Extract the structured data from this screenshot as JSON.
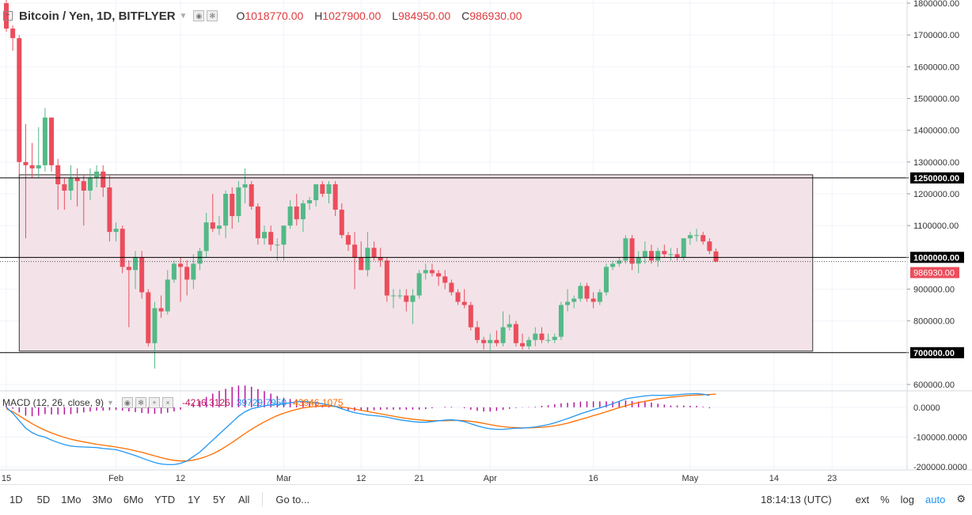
{
  "header": {
    "symbol_title": "Bitcoin / Yen, 1D, BITFLYER",
    "open_label": "O",
    "open_value": "1018770.00",
    "high_label": "H",
    "high_value": "1027900.00",
    "low_label": "L",
    "low_value": "984950.00",
    "close_label": "C",
    "close_value": "986930.00"
  },
  "macd_header": {
    "name": "MACD (12, 26, close, 9)",
    "hist_value": "-4216.3126",
    "macd_value": "39729.7950",
    "signal_value": "43946.1075"
  },
  "colors": {
    "up": "#53b987",
    "down": "#eb4d5c",
    "zone_fill": "#f3e3e8",
    "macd_line": "#2196f3",
    "signal_line": "#ff6d00",
    "hist": "#b5179e",
    "price_tag": "#eb4d5c"
  },
  "price_axis": {
    "ticks": [
      "1800000.00",
      "1700000.00",
      "1600000.00",
      "1500000.00",
      "1400000.00",
      "1300000.00",
      "1200000.00",
      "1100000.00",
      "900000.00",
      "800000.00",
      "600000.00"
    ],
    "tick_values": [
      1800000,
      1700000,
      1600000,
      1500000,
      1400000,
      1300000,
      1200000,
      1100000,
      900000,
      800000,
      600000
    ],
    "level_tags": [
      "1250000.00",
      "1000000.00",
      "700000.00"
    ],
    "level_values": [
      1250000,
      1000000,
      700000
    ],
    "last_price_tag": "986930.00",
    "last_price_value": 986930
  },
  "macd_axis": {
    "ticks": [
      "0.0000",
      "-100000.0000",
      "-200000.0000"
    ],
    "tick_values": [
      0,
      -100000,
      -200000
    ]
  },
  "time_axis": {
    "labels": [
      "15",
      "Feb",
      "12",
      "Mar",
      "12",
      "21",
      "Apr",
      "16",
      "May",
      "14",
      "23"
    ],
    "bar_index": [
      0,
      17,
      27,
      43,
      55,
      64,
      75,
      91,
      106,
      119,
      128
    ]
  },
  "chart_data": {
    "type": "candlestick",
    "title": "Bitcoin / Yen, 1D, BITFLYER",
    "ylim": [
      580000,
      1810000
    ],
    "support_resistance": [
      1250000,
      1000000,
      700000
    ],
    "zone": {
      "top": 1260000,
      "bottom": 705000,
      "start_bar": 2,
      "end_bar": 125
    },
    "ohlc": [
      [
        1800000,
        1820000,
        1710000,
        1720000
      ],
      [
        1720000,
        1730000,
        1650000,
        1690000
      ],
      [
        1690000,
        1700000,
        1260000,
        1300000
      ],
      [
        1300000,
        1420000,
        1060000,
        1290000
      ],
      [
        1290000,
        1360000,
        1250000,
        1280000
      ],
      [
        1280000,
        1410000,
        1250000,
        1290000
      ],
      [
        1290000,
        1470000,
        1270000,
        1440000
      ],
      [
        1440000,
        1440000,
        1270000,
        1290000
      ],
      [
        1290000,
        1310000,
        1150000,
        1230000
      ],
      [
        1230000,
        1250000,
        1150000,
        1210000
      ],
      [
        1210000,
        1290000,
        1180000,
        1250000
      ],
      [
        1250000,
        1280000,
        1160000,
        1240000
      ],
      [
        1240000,
        1260000,
        1100000,
        1210000
      ],
      [
        1210000,
        1280000,
        1180000,
        1250000
      ],
      [
        1250000,
        1290000,
        1220000,
        1270000
      ],
      [
        1270000,
        1290000,
        1190000,
        1220000
      ],
      [
        1220000,
        1260000,
        1050000,
        1080000
      ],
      [
        1080000,
        1110000,
        1050000,
        1090000
      ],
      [
        1090000,
        1100000,
        950000,
        970000
      ],
      [
        970000,
        990000,
        780000,
        960000
      ],
      [
        960000,
        1020000,
        900000,
        1000000
      ],
      [
        1000000,
        1020000,
        870000,
        890000
      ],
      [
        890000,
        900000,
        720000,
        730000
      ],
      [
        730000,
        860000,
        650000,
        840000
      ],
      [
        840000,
        880000,
        810000,
        830000
      ],
      [
        830000,
        960000,
        820000,
        930000
      ],
      [
        930000,
        990000,
        920000,
        980000
      ],
      [
        980000,
        1000000,
        860000,
        970000
      ],
      [
        970000,
        990000,
        880000,
        930000
      ],
      [
        930000,
        1010000,
        900000,
        980000
      ],
      [
        980000,
        1030000,
        960000,
        1020000
      ],
      [
        1020000,
        1140000,
        1000000,
        1110000
      ],
      [
        1110000,
        1200000,
        1080000,
        1090000
      ],
      [
        1090000,
        1130000,
        1070000,
        1100000
      ],
      [
        1100000,
        1210000,
        1060000,
        1200000
      ],
      [
        1200000,
        1220000,
        1090000,
        1130000
      ],
      [
        1130000,
        1240000,
        1110000,
        1220000
      ],
      [
        1220000,
        1280000,
        1170000,
        1230000
      ],
      [
        1230000,
        1240000,
        1150000,
        1160000
      ],
      [
        1160000,
        1170000,
        1040000,
        1060000
      ],
      [
        1060000,
        1100000,
        1040000,
        1080000
      ],
      [
        1080000,
        1100000,
        1020000,
        1040000
      ],
      [
        1040000,
        1060000,
        990000,
        1040000
      ],
      [
        1040000,
        1100000,
        990000,
        1100000
      ],
      [
        1100000,
        1180000,
        1090000,
        1160000
      ],
      [
        1160000,
        1200000,
        1100000,
        1120000
      ],
      [
        1120000,
        1180000,
        1080000,
        1170000
      ],
      [
        1170000,
        1190000,
        1150000,
        1180000
      ],
      [
        1180000,
        1230000,
        1160000,
        1230000
      ],
      [
        1230000,
        1240000,
        1190000,
        1200000
      ],
      [
        1200000,
        1240000,
        1170000,
        1230000
      ],
      [
        1230000,
        1240000,
        1130000,
        1150000
      ],
      [
        1150000,
        1170000,
        1060000,
        1070000
      ],
      [
        1070000,
        1080000,
        1020000,
        1040000
      ],
      [
        1040000,
        1080000,
        900000,
        1000000
      ],
      [
        1000000,
        1050000,
        960000,
        960000
      ],
      [
        960000,
        1080000,
        940000,
        1030000
      ],
      [
        1030000,
        1050000,
        990000,
        1000000
      ],
      [
        1000000,
        1030000,
        970000,
        990000
      ],
      [
        990000,
        1000000,
        860000,
        880000
      ],
      [
        880000,
        900000,
        840000,
        880000
      ],
      [
        880000,
        900000,
        870000,
        880000
      ],
      [
        880000,
        900000,
        830000,
        860000
      ],
      [
        860000,
        900000,
        790000,
        880000
      ],
      [
        880000,
        960000,
        870000,
        950000
      ],
      [
        950000,
        980000,
        930000,
        960000
      ],
      [
        960000,
        980000,
        940000,
        950000
      ],
      [
        950000,
        960000,
        910000,
        940000
      ],
      [
        940000,
        960000,
        900000,
        920000
      ],
      [
        920000,
        930000,
        880000,
        890000
      ],
      [
        890000,
        900000,
        850000,
        860000
      ],
      [
        860000,
        900000,
        840000,
        850000
      ],
      [
        850000,
        860000,
        770000,
        780000
      ],
      [
        780000,
        800000,
        730000,
        740000
      ],
      [
        740000,
        750000,
        710000,
        730000
      ],
      [
        730000,
        760000,
        700000,
        740000
      ],
      [
        740000,
        770000,
        720000,
        730000
      ],
      [
        730000,
        830000,
        720000,
        780000
      ],
      [
        780000,
        820000,
        770000,
        790000
      ],
      [
        790000,
        800000,
        720000,
        730000
      ],
      [
        730000,
        760000,
        710000,
        720000
      ],
      [
        720000,
        750000,
        710000,
        740000
      ],
      [
        740000,
        780000,
        720000,
        760000
      ],
      [
        760000,
        780000,
        730000,
        740000
      ],
      [
        740000,
        760000,
        730000,
        740000
      ],
      [
        740000,
        760000,
        730000,
        750000
      ],
      [
        750000,
        860000,
        740000,
        850000
      ],
      [
        850000,
        900000,
        830000,
        860000
      ],
      [
        860000,
        880000,
        840000,
        870000
      ],
      [
        870000,
        920000,
        860000,
        910000
      ],
      [
        910000,
        920000,
        860000,
        870000
      ],
      [
        870000,
        890000,
        840000,
        860000
      ],
      [
        860000,
        900000,
        850000,
        890000
      ],
      [
        890000,
        980000,
        880000,
        970000
      ],
      [
        970000,
        990000,
        960000,
        980000
      ],
      [
        980000,
        1000000,
        970000,
        990000
      ],
      [
        990000,
        1070000,
        980000,
        1060000
      ],
      [
        1060000,
        1070000,
        960000,
        980000
      ],
      [
        980000,
        1020000,
        950000,
        1000000
      ],
      [
        1000000,
        1050000,
        980000,
        1020000
      ],
      [
        1020000,
        1040000,
        980000,
        990000
      ],
      [
        990000,
        1030000,
        970000,
        1020000
      ],
      [
        1020000,
        1040000,
        1000000,
        1010000
      ],
      [
        1010000,
        1030000,
        990000,
        1010000
      ],
      [
        1010000,
        1030000,
        990000,
        1000000
      ],
      [
        1000000,
        1060000,
        990000,
        1060000
      ],
      [
        1060000,
        1080000,
        1040000,
        1070000
      ],
      [
        1070000,
        1090000,
        1050000,
        1070000
      ],
      [
        1070000,
        1080000,
        1040000,
        1050000
      ],
      [
        1050000,
        1060000,
        1010000,
        1020000
      ],
      [
        1018770,
        1027900,
        984950,
        986930
      ]
    ],
    "macd": {
      "ylim": [
        -210000,
        50000
      ],
      "macd_line": [
        0,
        -20000,
        -45000,
        -70000,
        -85000,
        -95000,
        -100000,
        -110000,
        -118000,
        -125000,
        -130000,
        -132000,
        -133000,
        -134000,
        -135000,
        -138000,
        -140000,
        -142000,
        -148000,
        -155000,
        -162000,
        -170000,
        -178000,
        -185000,
        -190000,
        -192000,
        -192000,
        -188000,
        -180000,
        -165000,
        -150000,
        -130000,
        -110000,
        -90000,
        -70000,
        -50000,
        -30000,
        -15000,
        -5000,
        0,
        5000,
        8000,
        10000,
        12000,
        15000,
        18000,
        20000,
        18000,
        15000,
        12000,
        8000,
        3000,
        -5000,
        -12000,
        -18000,
        -22000,
        -26000,
        -28000,
        -30000,
        -33000,
        -38000,
        -42000,
        -45000,
        -48000,
        -50000,
        -50000,
        -48000,
        -45000,
        -43000,
        -42000,
        -44000,
        -48000,
        -55000,
        -62000,
        -68000,
        -72000,
        -74000,
        -74000,
        -72000,
        -70000,
        -70000,
        -68000,
        -66000,
        -62000,
        -58000,
        -52000,
        -45000,
        -38000,
        -30000,
        -22000,
        -15000,
        -8000,
        -2000,
        5000,
        12000,
        20000,
        28000,
        32000,
        35000,
        38000,
        40000,
        40000,
        40000,
        40000,
        42000,
        44000,
        45000,
        46000,
        44000,
        40000
      ],
      "signal_line": [
        -5000,
        -15000,
        -28000,
        -42000,
        -55000,
        -67000,
        -77000,
        -86000,
        -94000,
        -101000,
        -107000,
        -112000,
        -116000,
        -120000,
        -124000,
        -127000,
        -130000,
        -133000,
        -137000,
        -141000,
        -146000,
        -151000,
        -157000,
        -163000,
        -169000,
        -174000,
        -178000,
        -180000,
        -180000,
        -177000,
        -172000,
        -165000,
        -156000,
        -145000,
        -132000,
        -118000,
        -103000,
        -88000,
        -74000,
        -61000,
        -49000,
        -38000,
        -28000,
        -20000,
        -13000,
        -7000,
        -2000,
        1000,
        3000,
        4000,
        4000,
        3000,
        1000,
        -2000,
        -6000,
        -10000,
        -14000,
        -18000,
        -22000,
        -26000,
        -30000,
        -34000,
        -37000,
        -40000,
        -42000,
        -44000,
        -45000,
        -45000,
        -45000,
        -44000,
        -44000,
        -45000,
        -47000,
        -50000,
        -54000,
        -58000,
        -62000,
        -65000,
        -67000,
        -68000,
        -69000,
        -69000,
        -68000,
        -67000,
        -65000,
        -62000,
        -58000,
        -53000,
        -47000,
        -41000,
        -35000,
        -28000,
        -22000,
        -15000,
        -8000,
        -1000,
        5000,
        11000,
        16000,
        20000,
        24000,
        28000,
        31000,
        34000,
        36000,
        38000,
        40000,
        41000,
        42000,
        43000,
        44000
      ],
      "hist": [
        5000,
        -5000,
        -17000,
        -28000,
        -30000,
        -28000,
        -23000,
        -24000,
        -24000,
        -24000,
        -23000,
        -20000,
        -17000,
        -14000,
        -11000,
        -11000,
        -10000,
        -9000,
        -11000,
        -14000,
        -16000,
        -19000,
        -21000,
        -22000,
        -21000,
        -18000,
        -14000,
        -8000,
        0,
        12000,
        22000,
        35000,
        46000,
        55000,
        62000,
        68000,
        73000,
        73000,
        69000,
        61000,
        54000,
        46000,
        38000,
        32000,
        28000,
        25000,
        22000,
        17000,
        12000,
        8000,
        4000,
        0,
        -6000,
        -10000,
        -12000,
        -12000,
        -12000,
        -10000,
        -8000,
        -7000,
        -8000,
        -8000,
        -8000,
        -8000,
        -8000,
        -6000,
        -3000,
        0,
        2000,
        2000,
        0,
        -3000,
        -8000,
        -12000,
        -14000,
        -14000,
        -12000,
        -9000,
        -5000,
        -2000,
        -1000,
        1000,
        2000,
        5000,
        7000,
        10000,
        13000,
        15000,
        17000,
        19000,
        20000,
        20000,
        20000,
        20000,
        20000,
        21000,
        23000,
        21000,
        19000,
        18000,
        16000,
        12000,
        9000,
        6000,
        6000,
        6000,
        5000,
        5000,
        2000,
        -3000
      ]
    }
  },
  "bottom_bar": {
    "timeframes": [
      "1D",
      "5D",
      "1Mo",
      "3Mo",
      "6Mo",
      "YTD",
      "1Y",
      "5Y",
      "All"
    ],
    "goto": "Go to...",
    "clock": "18:14:13 (UTC)",
    "ext": "ext",
    "percent": "%",
    "log": "log",
    "auto": "auto"
  }
}
